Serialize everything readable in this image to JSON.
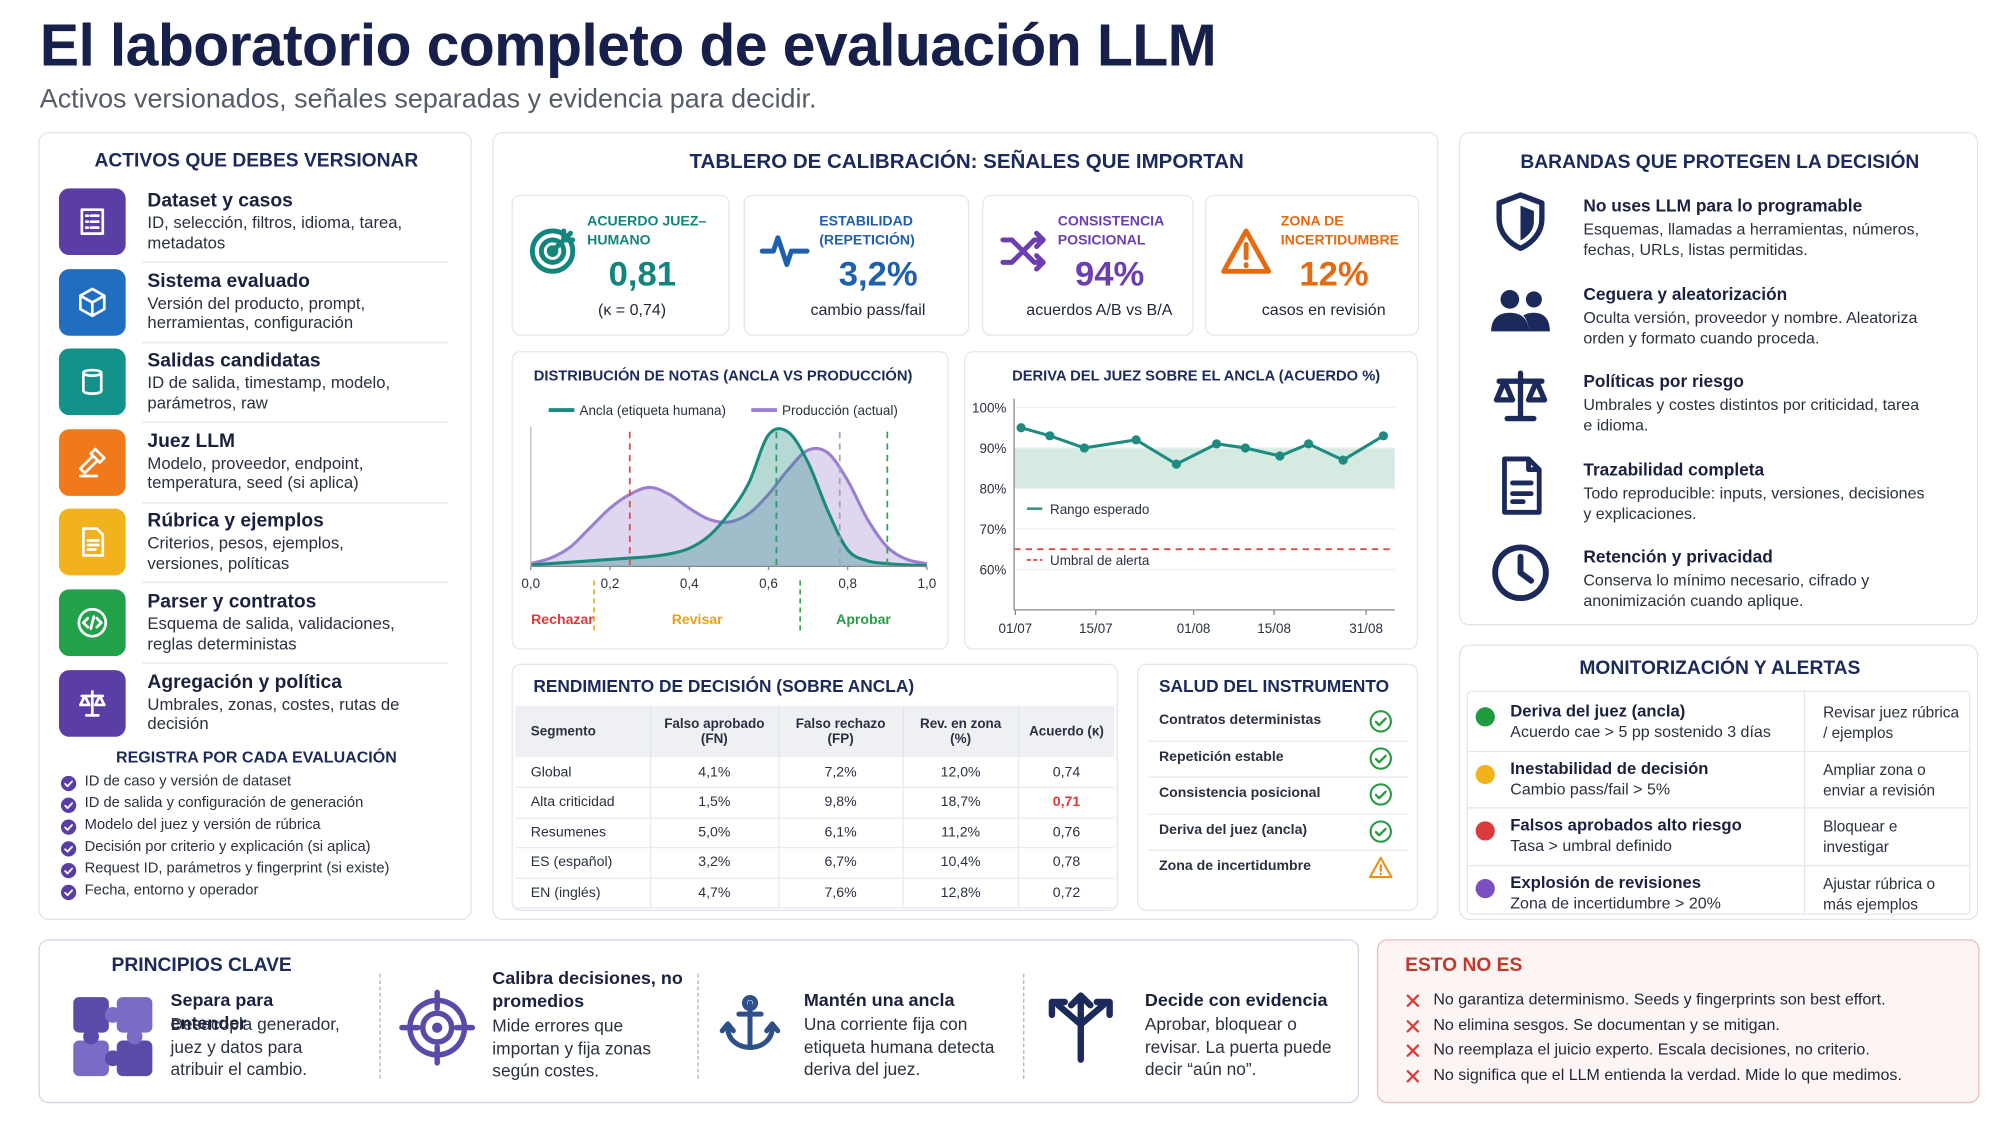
{
  "header": {
    "title": "El laboratorio completo de evaluación LLM",
    "subtitle": "Activos versionados, señales separadas y evidencia para decidir."
  },
  "assets": {
    "title": "ACTIVOS QUE DEBES VERSIONAR",
    "items": [
      {
        "name": "Dataset y casos",
        "desc": "ID, selección, filtros, idioma, tarea, metadatos",
        "color": "#5a3ea6"
      },
      {
        "name": "Sistema evaluado",
        "desc": "Versión del producto, prompt, herramientas, configuración",
        "color": "#1f6ec2"
      },
      {
        "name": "Salidas candidatas",
        "desc": "ID de salida, timestamp, modelo, parámetros, raw",
        "color": "#13928a"
      },
      {
        "name": "Juez LLM",
        "desc": "Modelo, proveedor, endpoint, temperatura, seed (si aplica)",
        "color": "#f07a1a"
      },
      {
        "name": "Rúbrica y ejemplos",
        "desc": "Criterios, pesos, ejemplos, versiones, políticas",
        "color": "#f2b21b"
      },
      {
        "name": "Parser y contratos",
        "desc": "Esquema de salida, validaciones, reglas deterministas",
        "color": "#21a24a"
      },
      {
        "name": "Agregación y política",
        "desc": "Umbrales, zonas, costes, rutas de decisión",
        "color": "#5a3ea6"
      }
    ],
    "log_title": "REGISTRA POR CADA EVALUACIÓN",
    "log_items": [
      "ID de caso y versión de dataset",
      "ID de salida y configuración de generación",
      "Modelo del juez y versión de rúbrica",
      "Decisión por criterio y explicación (si aplica)",
      "Request ID, parámetros y fingerprint (si existe)",
      "Fecha, entorno y operador"
    ]
  },
  "dashboard": {
    "title": "TABLERO DE CALIBRACIÓN: SEÑALES QUE IMPORTAN",
    "kpis": [
      {
        "label": "ACUERDO JUEZ–HUMANO",
        "value": "0,81",
        "note": "(κ = 0,74)",
        "color": "#12857c"
      },
      {
        "label": "ESTABILIDAD (REPETICIÓN)",
        "value": "3,2%",
        "note": "cambio pass/fail",
        "color": "#1f5fae"
      },
      {
        "label": "CONSISTENCIA POSICIONAL",
        "value": "94%",
        "note": "acuerdos A/B vs B/A",
        "color": "#6c3fb0"
      },
      {
        "label": "ZONA DE INCERTIDUMBRE",
        "value": "12%",
        "note": "casos en revisión",
        "color": "#e56b12"
      }
    ],
    "distribution": {
      "type": "area",
      "title": "DISTRIBUCIÓN DE NOTAS (ANCLA VS PRODUCCIÓN)",
      "x": [
        0,
        0.05,
        0.1,
        0.15,
        0.2,
        0.25,
        0.3,
        0.35,
        0.4,
        0.45,
        0.5,
        0.55,
        0.6,
        0.65,
        0.7,
        0.75,
        0.8,
        0.85,
        0.9,
        0.95,
        1
      ],
      "series": [
        {
          "name": "Ancla (etiqueta humana)",
          "color": "#1b8a7e",
          "values": [
            1,
            2,
            3,
            4,
            5,
            6,
            7,
            9,
            13,
            22,
            38,
            60,
            95,
            97,
            75,
            40,
            12,
            4,
            2,
            1,
            0.5
          ]
        },
        {
          "name": "Producción (actual)",
          "color": "#9b7fd0",
          "values": [
            2,
            6,
            14,
            28,
            42,
            52,
            57,
            52,
            42,
            34,
            32,
            38,
            52,
            70,
            84,
            82,
            62,
            34,
            14,
            5,
            2
          ]
        }
      ],
      "xlim": [
        0,
        1
      ],
      "ylim": [
        0,
        100
      ],
      "xticks": [
        {
          "value": 0,
          "label": "0,0"
        },
        {
          "value": 0.2,
          "label": "0,2"
        },
        {
          "value": 0.4,
          "label": "0,4"
        },
        {
          "value": 0.6,
          "label": "0,6"
        },
        {
          "value": 0.8,
          "label": "0,8"
        },
        {
          "value": 1,
          "label": "1,0"
        }
      ],
      "thresholds": [
        {
          "value": 0.25,
          "color": "#e34b4b"
        },
        {
          "value": 0.62,
          "color": "#2e9a6e"
        },
        {
          "value": 0.78,
          "color": "#a8a0c0"
        },
        {
          "value": 0.9,
          "color": "#3aa05a"
        }
      ],
      "zones": [
        {
          "label": "Rechazar",
          "from": 0,
          "to": 0.16,
          "color": "#d93a3a"
        },
        {
          "label": "Revisar",
          "from": 0.16,
          "to": 0.68,
          "color": "#e8a21a"
        },
        {
          "label": "Aprobar",
          "from": 0.68,
          "to": 1,
          "color": "#2a9a45"
        }
      ]
    },
    "drift": {
      "type": "line",
      "title": "DERIVA DEL JUEZ SOBRE EL ANCLA (ACUERDO %)",
      "x": [
        1,
        6,
        12,
        21,
        28,
        35,
        40,
        46,
        51,
        57,
        64
      ],
      "values": [
        95,
        93,
        90,
        92,
        86,
        91,
        90,
        88,
        91,
        87,
        93
      ],
      "color": "#1f8a80",
      "xlim": [
        -2,
        66
      ],
      "ylim": [
        50,
        100
      ],
      "xticks": [
        {
          "value": 0,
          "label": "01/07"
        },
        {
          "value": 14,
          "label": "15/07"
        },
        {
          "value": 31,
          "label": "01/08"
        },
        {
          "value": 45,
          "label": "15/08"
        },
        {
          "value": 61,
          "label": "31/08"
        }
      ],
      "yticks": [
        {
          "value": 60,
          "label": "60%"
        },
        {
          "value": 70,
          "label": "70%"
        },
        {
          "value": 80,
          "label": "80%"
        },
        {
          "value": 90,
          "label": "90%"
        },
        {
          "value": 100,
          "label": "100%"
        }
      ],
      "band": {
        "label": "Rango esperado",
        "range": [
          80,
          90
        ],
        "color": "#2e9a6e"
      },
      "alert": {
        "label": "Umbral de alerta",
        "value": 65,
        "color": "#e04a4a"
      },
      "grid": true
    },
    "performance": {
      "title": "RENDIMIENTO DE DECISIÓN (SOBRE ANCLA)",
      "header": [
        "Segmento",
        "Falso aprobado (FN)",
        "Falso rechazo (FP)",
        "Rev. en zona (%)",
        "Acuerdo (κ)"
      ],
      "rows": [
        [
          "Global",
          "4,1%",
          "7,2%",
          "12,0%",
          "0,74"
        ],
        [
          "Alta criticidad",
          "1,5%",
          "9,8%",
          "18,7%",
          "0,71"
        ],
        [
          "Resumenes",
          "5,0%",
          "6,1%",
          "11,2%",
          "0,76"
        ],
        [
          "ES (español)",
          "3,2%",
          "6,7%",
          "10,4%",
          "0,78"
        ],
        [
          "EN (inglés)",
          "4,7%",
          "7,6%",
          "12,8%",
          "0,72"
        ]
      ],
      "alert_cell": {
        "row": 1,
        "col": 4,
        "color": "#d93a3a"
      }
    },
    "health": {
      "title": "SALUD DEL INSTRUMENTO",
      "items": [
        {
          "label": "Contratos deterministas",
          "status": "ok"
        },
        {
          "label": "Repetición estable",
          "status": "ok"
        },
        {
          "label": "Consistencia posicional",
          "status": "ok"
        },
        {
          "label": "Deriva del juez (ancla)",
          "status": "ok"
        },
        {
          "label": "Zona de incertidumbre",
          "status": "warn"
        }
      ]
    }
  },
  "guards": {
    "title": "BARANDAS QUE PROTEGEN LA DECISIÓN",
    "items": [
      {
        "name": "No uses LLM para lo programable",
        "desc": "Esquemas, llamadas a herramientas, números, fechas, URLs, listas permitidas."
      },
      {
        "name": "Ceguera y aleatorización",
        "desc": "Oculta versión, proveedor y nombre. Aleatoriza orden y formato cuando proceda."
      },
      {
        "name": "Políticas por riesgo",
        "desc": "Umbrales y costes distintos por criticidad, tarea e idioma."
      },
      {
        "name": "Trazabilidad completa",
        "desc": "Todo reproducible: inputs, versiones, decisiones y explicaciones."
      },
      {
        "name": "Retención y privacidad",
        "desc": "Conserva lo mínimo necesario, cifrado y anonimización cuando aplique."
      }
    ]
  },
  "monitoring": {
    "title": "MONITORIZACIÓN Y ALERTAS",
    "rows": [
      {
        "color": "#1f9a3f",
        "name": "Deriva del juez (ancla)",
        "desc": "Acuerdo cae > 5 pp sostenido 3 días",
        "action": "Revisar juez rúbrica / ejemplos"
      },
      {
        "color": "#f2b21b",
        "name": "Inestabilidad de decisión",
        "desc": "Cambio pass/fail > 5%",
        "action": "Ampliar zona o enviar a revisión"
      },
      {
        "color": "#d93a3a",
        "name": "Falsos aprobados alto riesgo",
        "desc": "Tasa > umbral definido",
        "action": "Bloquear e investigar"
      },
      {
        "color": "#7b4fc0",
        "name": "Explosión de revisiones",
        "desc": "Zona de incertidumbre > 20%",
        "action": "Ajustar rúbrica o más ejemplos"
      }
    ]
  },
  "principles": {
    "title": "PRINCIPIOS CLAVE",
    "items": [
      {
        "name": "Separa para entender",
        "desc": "Desacopla generador, juez y datos para atribuir el cambio."
      },
      {
        "name": "Calibra decisiones, no promedios",
        "desc": "Mide errores que importan y fija zonas según costes."
      },
      {
        "name": "Mantén una ancla",
        "desc": "Una corriente fija con etiqueta humana detecta deriva del juez."
      },
      {
        "name": "Decide con evidencia",
        "desc": "Aprobar, bloquear o revisar. La puerta puede decir “aún no”."
      }
    ]
  },
  "not_this": {
    "title": "ESTO NO ES",
    "items": [
      "No garantiza determinismo. Seeds y fingerprints son best effort.",
      "No elimina sesgos. Se documentan y se mitigan.",
      "No reemplaza el juicio experto. Escala decisiones, no criterio.",
      "No significa que el LLM entienda la verdad. Mide lo que medimos."
    ]
  }
}
